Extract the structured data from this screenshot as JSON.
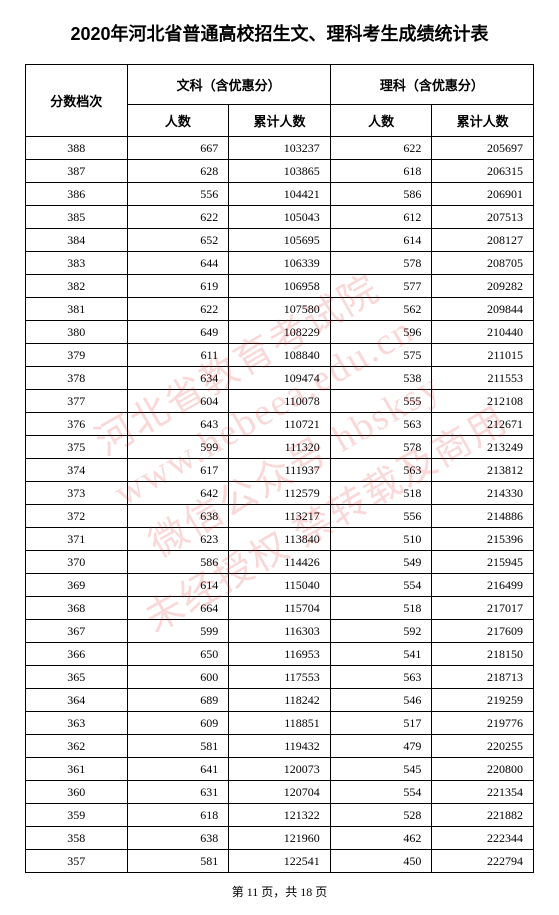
{
  "title": "2020年河北省普通高校招生文、理科考生成绩统计表",
  "headers": {
    "score": "分数档次",
    "arts_group": "文科（含优惠分）",
    "science_group": "理科（含优惠分）",
    "count": "人数",
    "cumulative": "累计人数"
  },
  "rows": [
    {
      "score": 388,
      "a_count": 667,
      "a_cum": 103237,
      "s_count": 622,
      "s_cum": 205697
    },
    {
      "score": 387,
      "a_count": 628,
      "a_cum": 103865,
      "s_count": 618,
      "s_cum": 206315
    },
    {
      "score": 386,
      "a_count": 556,
      "a_cum": 104421,
      "s_count": 586,
      "s_cum": 206901
    },
    {
      "score": 385,
      "a_count": 622,
      "a_cum": 105043,
      "s_count": 612,
      "s_cum": 207513
    },
    {
      "score": 384,
      "a_count": 652,
      "a_cum": 105695,
      "s_count": 614,
      "s_cum": 208127
    },
    {
      "score": 383,
      "a_count": 644,
      "a_cum": 106339,
      "s_count": 578,
      "s_cum": 208705
    },
    {
      "score": 382,
      "a_count": 619,
      "a_cum": 106958,
      "s_count": 577,
      "s_cum": 209282
    },
    {
      "score": 381,
      "a_count": 622,
      "a_cum": 107580,
      "s_count": 562,
      "s_cum": 209844
    },
    {
      "score": 380,
      "a_count": 649,
      "a_cum": 108229,
      "s_count": 596,
      "s_cum": 210440
    },
    {
      "score": 379,
      "a_count": 611,
      "a_cum": 108840,
      "s_count": 575,
      "s_cum": 211015
    },
    {
      "score": 378,
      "a_count": 634,
      "a_cum": 109474,
      "s_count": 538,
      "s_cum": 211553
    },
    {
      "score": 377,
      "a_count": 604,
      "a_cum": 110078,
      "s_count": 555,
      "s_cum": 212108
    },
    {
      "score": 376,
      "a_count": 643,
      "a_cum": 110721,
      "s_count": 563,
      "s_cum": 212671
    },
    {
      "score": 375,
      "a_count": 599,
      "a_cum": 111320,
      "s_count": 578,
      "s_cum": 213249
    },
    {
      "score": 374,
      "a_count": 617,
      "a_cum": 111937,
      "s_count": 563,
      "s_cum": 213812
    },
    {
      "score": 373,
      "a_count": 642,
      "a_cum": 112579,
      "s_count": 518,
      "s_cum": 214330
    },
    {
      "score": 372,
      "a_count": 638,
      "a_cum": 113217,
      "s_count": 556,
      "s_cum": 214886
    },
    {
      "score": 371,
      "a_count": 623,
      "a_cum": 113840,
      "s_count": 510,
      "s_cum": 215396
    },
    {
      "score": 370,
      "a_count": 586,
      "a_cum": 114426,
      "s_count": 549,
      "s_cum": 215945
    },
    {
      "score": 369,
      "a_count": 614,
      "a_cum": 115040,
      "s_count": 554,
      "s_cum": 216499
    },
    {
      "score": 368,
      "a_count": 664,
      "a_cum": 115704,
      "s_count": 518,
      "s_cum": 217017
    },
    {
      "score": 367,
      "a_count": 599,
      "a_cum": 116303,
      "s_count": 592,
      "s_cum": 217609
    },
    {
      "score": 366,
      "a_count": 650,
      "a_cum": 116953,
      "s_count": 541,
      "s_cum": 218150
    },
    {
      "score": 365,
      "a_count": 600,
      "a_cum": 117553,
      "s_count": 563,
      "s_cum": 218713
    },
    {
      "score": 364,
      "a_count": 689,
      "a_cum": 118242,
      "s_count": 546,
      "s_cum": 219259
    },
    {
      "score": 363,
      "a_count": 609,
      "a_cum": 118851,
      "s_count": 517,
      "s_cum": 219776
    },
    {
      "score": 362,
      "a_count": 581,
      "a_cum": 119432,
      "s_count": 479,
      "s_cum": 220255
    },
    {
      "score": 361,
      "a_count": 641,
      "a_cum": 120073,
      "s_count": 545,
      "s_cum": 220800
    },
    {
      "score": 360,
      "a_count": 631,
      "a_cum": 120704,
      "s_count": 554,
      "s_cum": 221354
    },
    {
      "score": 359,
      "a_count": 618,
      "a_cum": 121322,
      "s_count": 528,
      "s_cum": 221882
    },
    {
      "score": 358,
      "a_count": 638,
      "a_cum": 121960,
      "s_count": 462,
      "s_cum": 222344
    },
    {
      "score": 357,
      "a_count": 581,
      "a_cum": 122541,
      "s_count": 450,
      "s_cum": 222794
    }
  ],
  "footer": "第 11 页，共 18 页",
  "watermark": {
    "line1": "河北省教育考试院",
    "line2": "www.hebeea.edu.cn",
    "line3": "微信公众号 hbsksy",
    "line4": "未经授权 禁转载及商用"
  },
  "styling": {
    "title_color": "#000000",
    "border_color": "#000000",
    "watermark_color": "rgba(220,40,40,0.18)",
    "background_color": "#ffffff",
    "col_widths_pct": [
      20,
      20,
      20,
      20,
      20
    ]
  }
}
